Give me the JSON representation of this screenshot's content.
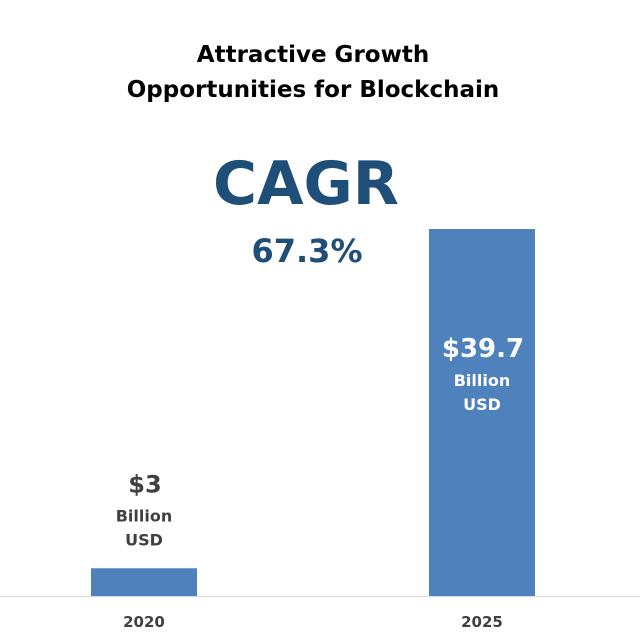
{
  "chart_data": {
    "type": "bar",
    "title": [
      "Attractive Growth",
      "Opportunities for Blockchain"
    ],
    "xlabel": "",
    "ylabel": "",
    "categories": [
      "2020",
      "2025"
    ],
    "values": [
      3,
      39.7
    ],
    "ylim": [
      0,
      42
    ],
    "grid": false,
    "legend": "none",
    "value_labels": [
      [
        "$3",
        "Billion",
        "USD"
      ],
      [
        "$39.7",
        "Billion",
        "USD"
      ]
    ],
    "annotation": {
      "heading": "CAGR",
      "value": "67.3%"
    }
  },
  "colors": {
    "bar": "#4f81bd",
    "title": "#000000",
    "accent": "#1f4e79",
    "label_outside": "#404040",
    "label_inside": "#ffffff",
    "axis": "#d9d9d9",
    "tick": "#404040"
  }
}
